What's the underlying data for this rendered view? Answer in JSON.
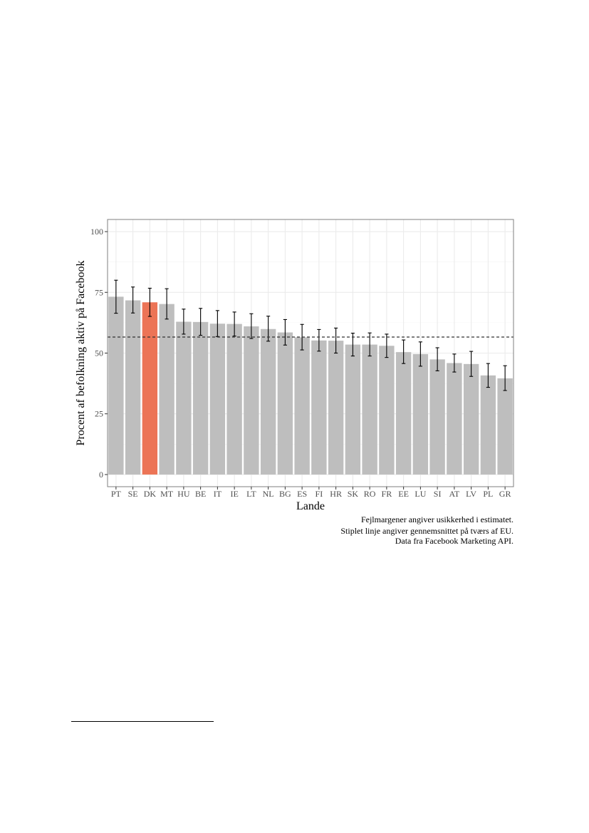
{
  "chart_data": {
    "type": "bar",
    "categories": [
      "PT",
      "SE",
      "DK",
      "MT",
      "HU",
      "BE",
      "IT",
      "IE",
      "LT",
      "NL",
      "BG",
      "ES",
      "FI",
      "HR",
      "SK",
      "RO",
      "FR",
      "EE",
      "LU",
      "SI",
      "AT",
      "LV",
      "PL",
      "GR"
    ],
    "values": [
      73.2,
      71.7,
      70.9,
      70.2,
      62.9,
      62.8,
      62.1,
      62.0,
      61.0,
      59.9,
      58.5,
      56.5,
      55.2,
      55.1,
      53.5,
      53.5,
      53.0,
      50.4,
      49.6,
      47.4,
      45.9,
      45.5,
      40.8,
      39.6
    ],
    "error_low": [
      66.4,
      66.5,
      65.1,
      64.0,
      57.8,
      57.3,
      56.8,
      57.0,
      56.0,
      54.9,
      53.3,
      51.3,
      50.8,
      50.0,
      48.8,
      48.8,
      48.2,
      45.7,
      44.6,
      42.7,
      42.2,
      40.4,
      35.9,
      34.6
    ],
    "error_high": [
      80.0,
      77.2,
      76.7,
      76.5,
      68.1,
      68.4,
      67.5,
      66.9,
      66.2,
      65.2,
      63.8,
      61.8,
      59.7,
      60.3,
      58.2,
      58.3,
      57.8,
      55.4,
      54.6,
      52.2,
      49.6,
      50.7,
      45.7,
      44.8
    ],
    "highlight_category": "DK",
    "reference_line": 56.6,
    "xlabel": "Lande",
    "ylabel": "Procent af befolkning aktiv på Facebook",
    "yticks": [
      0,
      25,
      50,
      75,
      100
    ],
    "ytick_labels": [
      "0",
      "25",
      "50",
      "75",
      "100"
    ],
    "ylim": [
      -5,
      105
    ],
    "grid": true,
    "legend": "none",
    "colors": {
      "bar": "#bebebe",
      "highlight": "#ec7456",
      "error_bar": "#000000",
      "reference_line": "#333333",
      "grid": "#ebebeb",
      "panel_border": "#7f7f7f"
    },
    "caption": [
      "Fejlmargener angiver usikkerhed i estimatet.",
      "Stiplet linje angiver gennemsnittet på tværs af EU.",
      "Data fra Facebook Marketing API."
    ]
  }
}
